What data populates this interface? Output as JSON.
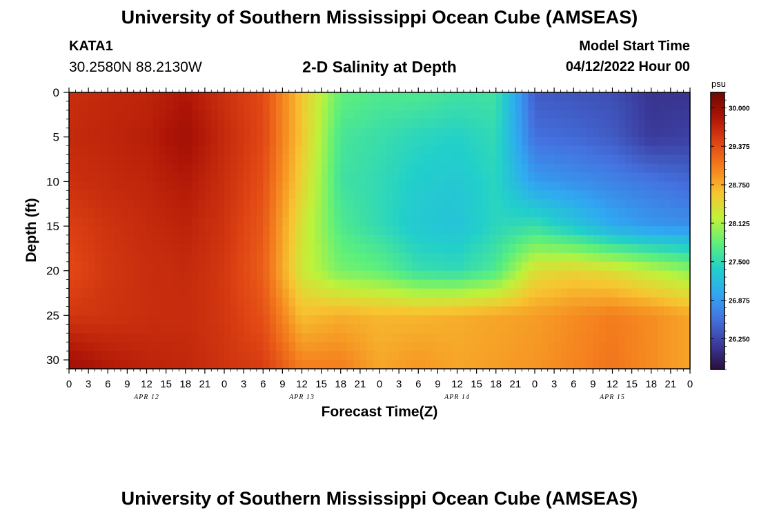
{
  "header": {
    "title": "University of Southern Mississippi Ocean Cube (AMSEAS)",
    "station_id": "KATA1",
    "coordinates": "30.2580N  88.2130W",
    "plot_title": "2-D Salinity at Depth",
    "model_start_label": "Model Start Time",
    "model_start_value": "04/12/2022 Hour 00"
  },
  "footer": {
    "title": "University of Southern Mississippi Ocean Cube (AMSEAS)"
  },
  "chart_data": {
    "type": "heatmap",
    "xlabel": "Forecast Time(Z)",
    "ylabel": "Depth (ft)",
    "x_hours_range": [
      0,
      96
    ],
    "x_tick_labels": [
      "0",
      "3",
      "6",
      "9",
      "12",
      "15",
      "18",
      "21",
      "0",
      "3",
      "6",
      "9",
      "12",
      "15",
      "18",
      "21",
      "0",
      "3",
      "6",
      "9",
      "12",
      "15",
      "18",
      "21",
      "0",
      "3",
      "6",
      "9",
      "12",
      "15",
      "18",
      "21",
      "0"
    ],
    "x_day_labels": [
      {
        "label": "APR 12",
        "hour": 12
      },
      {
        "label": "APR 13",
        "hour": 36
      },
      {
        "label": "APR 14",
        "hour": 60
      },
      {
        "label": "APR 15",
        "hour": 84
      }
    ],
    "y_range": [
      0,
      31
    ],
    "y_inverted": true,
    "y_ticks": [
      0,
      5,
      10,
      15,
      20,
      25,
      30
    ],
    "colorbar": {
      "unit": "psu",
      "min": 25.75,
      "max": 30.25,
      "tick_values": [
        30.0,
        29.375,
        28.75,
        28.125,
        27.5,
        26.875,
        26.25
      ],
      "tick_labels": [
        "30.000",
        "29.375",
        "28.750",
        "28.125",
        "27.500",
        "26.875",
        "26.250"
      ],
      "colors": [
        "#2a0e3c",
        "#3b3b9c",
        "#4472e0",
        "#30a8f2",
        "#22d0ca",
        "#5ef07a",
        "#bff23a",
        "#f7c531",
        "#f5801e",
        "#e04514",
        "#ad1406",
        "#6e0a02"
      ]
    },
    "grid_hours": [
      0,
      6,
      12,
      18,
      24,
      30,
      36,
      42,
      48,
      54,
      60,
      66,
      72,
      78,
      84,
      90,
      96
    ],
    "grid_depths": [
      0,
      5,
      10,
      15,
      20,
      25,
      31
    ],
    "salinity": [
      [
        29.62,
        29.68,
        29.7,
        29.82,
        29.6,
        29.4,
        28.6,
        27.8,
        27.7,
        27.7,
        27.6,
        27.6,
        26.4,
        26.35,
        26.3,
        26.1,
        26.1
      ],
      [
        29.66,
        29.7,
        29.75,
        29.92,
        29.66,
        29.42,
        28.6,
        27.65,
        27.55,
        27.45,
        27.4,
        27.5,
        26.55,
        26.5,
        26.4,
        26.15,
        26.2
      ],
      [
        29.6,
        29.66,
        29.7,
        29.8,
        29.62,
        29.36,
        28.5,
        27.6,
        27.5,
        27.35,
        27.3,
        27.45,
        26.9,
        26.8,
        26.7,
        26.6,
        26.5
      ],
      [
        29.48,
        29.58,
        29.65,
        29.72,
        29.58,
        29.3,
        28.35,
        27.7,
        27.5,
        27.3,
        27.25,
        27.45,
        27.55,
        27.3,
        27.0,
        26.85,
        26.8
      ],
      [
        29.4,
        29.55,
        29.62,
        29.66,
        29.54,
        29.25,
        28.3,
        27.9,
        27.8,
        27.55,
        27.5,
        27.7,
        28.4,
        28.5,
        28.4,
        28.2,
        28.0
      ],
      [
        29.55,
        29.58,
        29.62,
        29.64,
        29.55,
        29.35,
        28.65,
        28.75,
        28.7,
        28.7,
        28.75,
        28.8,
        28.85,
        28.95,
        29.05,
        28.95,
        28.8
      ],
      [
        29.95,
        29.8,
        29.72,
        29.68,
        29.58,
        29.5,
        29.05,
        29.05,
        28.8,
        28.9,
        28.8,
        28.85,
        28.9,
        29.0,
        29.1,
        28.95,
        28.8
      ]
    ]
  }
}
